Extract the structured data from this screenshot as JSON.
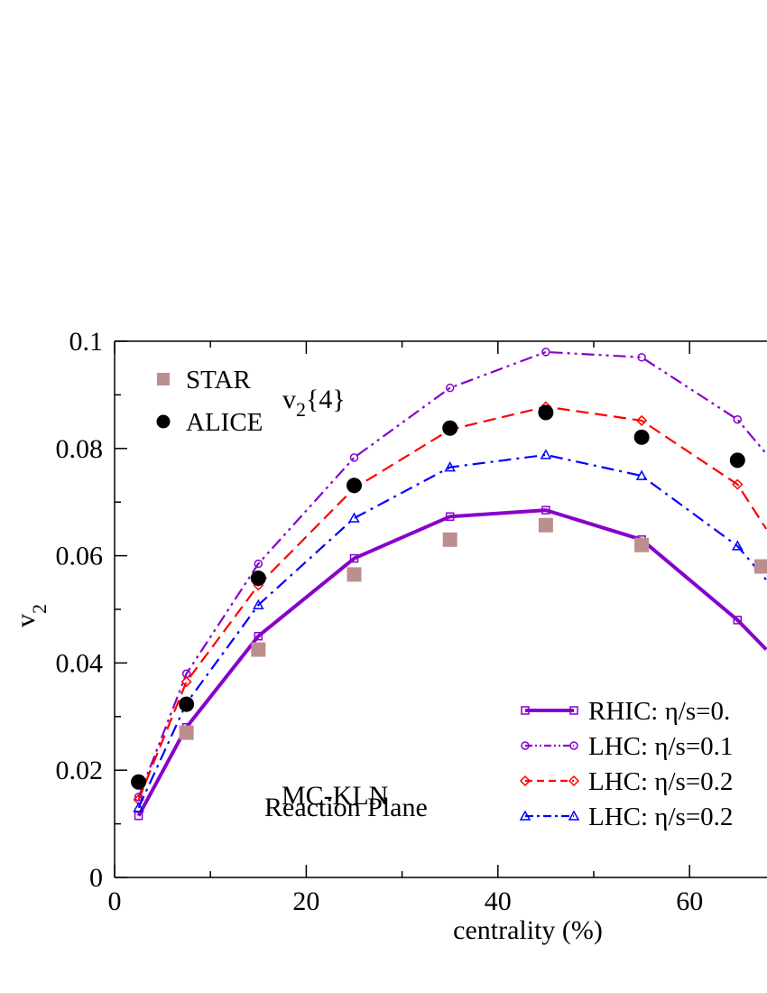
{
  "chart_data": {
    "type": "line",
    "title": "",
    "xlabel": "centrality (%)",
    "ylabel_main": "v",
    "ylabel_sub": "2",
    "xlim": [
      0,
      68
    ],
    "ylim": [
      0,
      0.1
    ],
    "xticks": [
      0,
      20,
      40,
      60
    ],
    "xtick_labels": [
      "0",
      "20",
      "40",
      "60"
    ],
    "yticks": [
      0,
      0.02,
      0.04,
      0.06,
      0.08,
      0.1
    ],
    "ytick_labels": [
      "0",
      "0.02",
      "0.04",
      "0.06",
      "0.08",
      "0.1"
    ],
    "x": [
      2.5,
      7.5,
      15,
      25,
      35,
      45,
      55,
      65
    ],
    "series": [
      {
        "name": "RHIC: η/s=0.",
        "style": "solid",
        "marker": "square",
        "color": "#8800cc",
        "x": [
          2.5,
          7.5,
          15,
          25,
          35,
          45,
          55,
          65,
          68
        ],
        "values": [
          0.0115,
          0.028,
          0.045,
          0.0595,
          0.0673,
          0.0685,
          0.063,
          0.048,
          0.0425
        ]
      },
      {
        "name": "LHC: η/s=0.1",
        "style": "dash-dot-dot",
        "marker": "circle",
        "color": "#8800cc",
        "x": [
          2.5,
          7.5,
          15,
          25,
          35,
          45,
          55,
          65,
          68
        ],
        "values": [
          0.015,
          0.038,
          0.0585,
          0.0783,
          0.0913,
          0.098,
          0.097,
          0.0854,
          0.079
        ]
      },
      {
        "name": "LHC: η/s=0.2",
        "style": "dashed",
        "marker": "diamond",
        "color": "#ff0000",
        "x": [
          2.5,
          7.5,
          15,
          25,
          35,
          45,
          55,
          65,
          68
        ],
        "values": [
          0.0145,
          0.0365,
          0.0545,
          0.0726,
          0.0835,
          0.0878,
          0.0852,
          0.0733,
          0.065
        ]
      },
      {
        "name": "LHC: η/s=0.2",
        "style": "dash-dot",
        "marker": "triangle",
        "color": "#0000ff",
        "x": [
          2.5,
          7.5,
          15,
          25,
          35,
          45,
          55,
          65,
          68
        ],
        "values": [
          0.013,
          0.0325,
          0.0508,
          0.067,
          0.0765,
          0.0788,
          0.0749,
          0.0618,
          0.0555
        ]
      }
    ],
    "data_points": [
      {
        "name": "STAR",
        "marker": "filled-square",
        "color": "#bc8f8f",
        "x": [
          7.5,
          15,
          25,
          35,
          45,
          55,
          67.5
        ],
        "values": [
          0.027,
          0.0425,
          0.0565,
          0.063,
          0.0657,
          0.062,
          0.058
        ]
      },
      {
        "name": "ALICE",
        "marker": "filled-circle",
        "color": "#000000",
        "x": [
          2.5,
          7.5,
          15,
          25,
          35,
          45,
          55,
          65
        ],
        "values": [
          0.0178,
          0.0323,
          0.0558,
          0.0731,
          0.0838,
          0.0867,
          0.0821,
          0.0778
        ]
      }
    ],
    "legend_position": "bottom-right",
    "annotations": {
      "v2_main": "v",
      "v2_sub": "2",
      "v2_suffix": "{4}",
      "model": "MC-KLN",
      "method": "Reaction Plane"
    }
  }
}
